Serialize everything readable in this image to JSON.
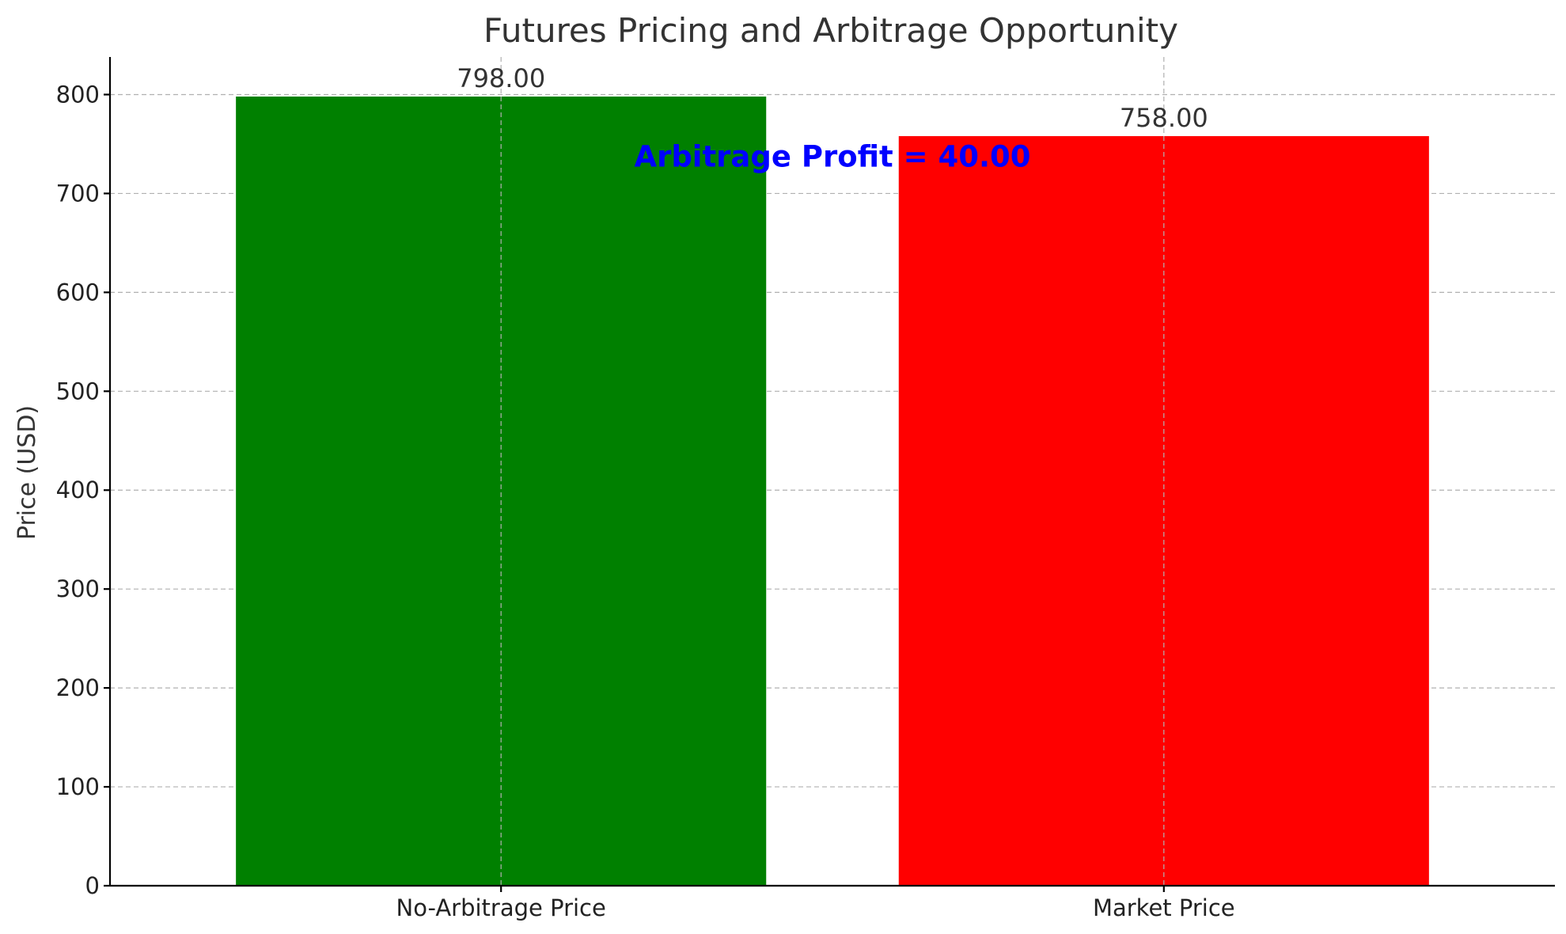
{
  "chart_data": {
    "type": "bar",
    "title": "Futures Pricing and Arbitrage Opportunity",
    "xlabel": "",
    "ylabel": "Price (USD)",
    "categories": [
      "No-Arbitrage Price",
      "Market Price"
    ],
    "values": [
      798.0,
      758.0
    ],
    "value_labels": [
      "798.00",
      "758.00"
    ],
    "bar_colors": [
      "#008000",
      "#ff0000"
    ],
    "ylim": [
      0,
      838
    ],
    "yticks": [
      0,
      100,
      200,
      300,
      400,
      500,
      600,
      700,
      800
    ],
    "grid": true,
    "annotation": {
      "text": "Arbitrage Profit = 40.00",
      "color": "#0000ff",
      "y_value": 727
    }
  }
}
